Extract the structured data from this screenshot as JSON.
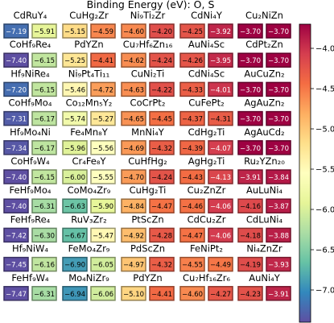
{
  "chart_data": {
    "type": "heatmap",
    "title": "Binding Energy (eV): O, S",
    "series": [
      {
        "name": "O"
      },
      {
        "name": "S"
      }
    ],
    "colormap": "Spectral",
    "vmin": -7.4,
    "vmax": -3.7,
    "colorbar_ticks": [
      -4.0,
      -4.5,
      -5.0,
      -5.5,
      -6.0,
      -6.5,
      -7.0
    ],
    "colorbar_tick_labels": [
      "−4.0",
      "−4.5",
      "−5.0",
      "−5.5",
      "−6.0",
      "−6.5",
      "−7.0"
    ],
    "rows": [
      [
        {
          "material": "CdRuY₄",
          "O": -7.19,
          "S": -5.91
        },
        {
          "material": "CuHg₂Zr",
          "O": -5.15,
          "S": -4.59
        },
        {
          "material": "Ni₉Ti₂Zr",
          "O": -4.6,
          "S": -4.2
        },
        {
          "material": "CdNi₄Y",
          "O": -4.25,
          "S": -3.92
        },
        {
          "material": "Cu₂NiZn",
          "O": -3.7,
          "S": -3.7
        }
      ],
      [
        {
          "material": "CoHf₉Re₄",
          "O": -7.4,
          "S": -6.15
        },
        {
          "material": "PdYZn",
          "O": -5.25,
          "S": -4.41
        },
        {
          "material": "Cu₇Hf₆Zn₁₆",
          "O": -4.62,
          "S": -4.24
        },
        {
          "material": "AuNi₄Sc",
          "O": -4.26,
          "S": -3.95
        },
        {
          "material": "CdPt₂Zn",
          "O": -3.7,
          "S": -3.7
        }
      ],
      [
        {
          "material": "Hf₉NiRe₄",
          "O": -7.2,
          "S": -6.15
        },
        {
          "material": "Ni₉Pt₄Ti₁₁",
          "O": -5.46,
          "S": -4.72
        },
        {
          "material": "CuNi₂Ti",
          "O": -4.63,
          "S": -4.22
        },
        {
          "material": "CdNi₄Sc",
          "O": -4.33,
          "S": -4.01
        },
        {
          "material": "AuCuZn₂",
          "O": -3.7,
          "S": -3.7
        }
      ],
      [
        {
          "material": "CoHf₉Mo₄",
          "O": -7.31,
          "S": -6.17
        },
        {
          "material": "Co₁₂Mn₅Y₂",
          "O": -5.74,
          "S": -5.27
        },
        {
          "material": "CoCrPt₂",
          "O": -4.65,
          "S": -4.45
        },
        {
          "material": "CuFePt₂",
          "O": -4.37,
          "S": -4.31
        },
        {
          "material": "AgAuZn₂",
          "O": -3.7,
          "S": -3.7
        }
      ],
      [
        {
          "material": "Hf₉Mo₄Ni",
          "O": -7.34,
          "S": -6.17
        },
        {
          "material": "Fe₄Mn₈Y",
          "O": -5.96,
          "S": -5.56
        },
        {
          "material": "MnNi₄Y",
          "O": -4.69,
          "S": -4.32
        },
        {
          "material": "CdHg₂Ti",
          "O": -4.39,
          "S": -4.07
        },
        {
          "material": "AgAuCd₂",
          "O": -3.7,
          "S": -3.7
        }
      ],
      [
        {
          "material": "CoHf₉W₄",
          "O": -7.4,
          "S": -6.15
        },
        {
          "material": "Cr₄Fe₈Y",
          "O": -6.0,
          "S": -5.55
        },
        {
          "material": "CuHfHg₂",
          "O": -4.7,
          "S": -4.24
        },
        {
          "material": "AgHg₂Ti",
          "O": -4.43,
          "S": -4.13
        },
        {
          "material": "Ru₂YZn₂₀",
          "O": -3.91,
          "S": -3.84
        }
      ],
      [
        {
          "material": "FeHf₉Mo₄",
          "O": -7.4,
          "S": -6.31
        },
        {
          "material": "CoMo₄Zr₉",
          "O": -6.63,
          "S": -5.9
        },
        {
          "material": "CuHg₂Ti",
          "O": -4.84,
          "S": -4.47
        },
        {
          "material": "Cu₂ZnZr",
          "O": -4.46,
          "S": -4.06
        },
        {
          "material": "AuLuNi₄",
          "O": -4.16,
          "S": -3.87
        }
      ],
      [
        {
          "material": "FeHf₉Re₄",
          "O": -7.42,
          "S": -6.3
        },
        {
          "material": "RuV₃Zr₂",
          "O": -6.67,
          "S": -5.47
        },
        {
          "material": "PtScZn",
          "O": -4.92,
          "S": -4.28
        },
        {
          "material": "CdCu₂Zr",
          "O": -4.47,
          "S": -4.06
        },
        {
          "material": "CdLuNi₄",
          "O": -4.18,
          "S": -3.88
        }
      ],
      [
        {
          "material": "Hf₉NiW₄",
          "O": -7.45,
          "S": -6.16
        },
        {
          "material": "FeMo₄Zr₉",
          "O": -6.9,
          "S": -6.05
        },
        {
          "material": "PdScZn",
          "O": -4.97,
          "S": -4.32
        },
        {
          "material": "FeNiPt₂",
          "O": -4.55,
          "S": -4.49
        },
        {
          "material": "Ni₄ZnZr",
          "O": -4.19,
          "S": -3.93
        }
      ],
      [
        {
          "material": "FeHf₉W₄",
          "O": -7.47,
          "S": -6.31
        },
        {
          "material": "Mo₄NiZr₉",
          "O": -6.94,
          "S": -6.06
        },
        {
          "material": "PdYZn",
          "O": -5.1,
          "S": -4.41
        },
        {
          "material": "Cu₇Hf₁₆Zr₆",
          "O": -4.6,
          "S": -4.27
        },
        {
          "material": "AuNi₄Y",
          "O": -4.23,
          "S": -3.91
        }
      ]
    ]
  }
}
